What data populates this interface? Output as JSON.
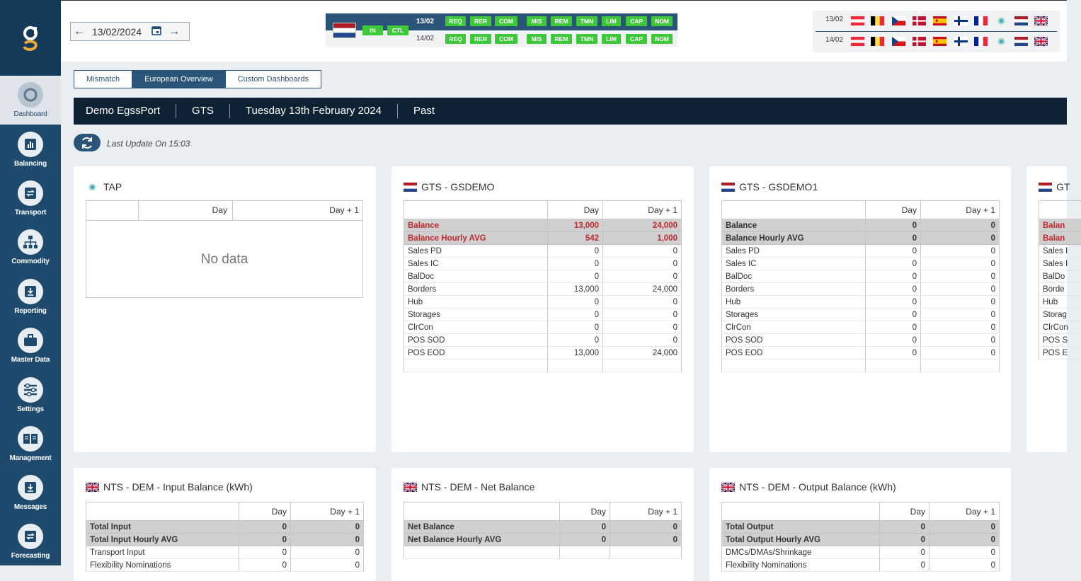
{
  "sidebar": {
    "items": [
      {
        "label": "Dashboard",
        "icon": "dashboard-icon",
        "active": true
      },
      {
        "label": "Balancing",
        "icon": "bar-chart-icon"
      },
      {
        "label": "Transport",
        "icon": "transfer-icon"
      },
      {
        "label": "Commodity",
        "icon": "hierarchy-icon"
      },
      {
        "label": "Reporting",
        "icon": "download-icon"
      },
      {
        "label": "Master Data",
        "icon": "briefcase-icon"
      },
      {
        "label": "Settings",
        "icon": "sliders-icon"
      },
      {
        "label": "Management",
        "icon": "book-icon"
      },
      {
        "label": "Messages",
        "icon": "inbox-download-icon"
      },
      {
        "label": "Forecasting",
        "icon": "transfer-icon"
      }
    ]
  },
  "header": {
    "date": "13/02/2024",
    "status": {
      "left_pills": [
        "IN",
        "CTL"
      ],
      "rows": [
        {
          "date": "13/02",
          "pills": [
            "REQ",
            "RER",
            "COM",
            "MIS",
            "REM",
            "TMN",
            "LIM",
            "CAP",
            "NOM"
          ]
        },
        {
          "date": "14/02",
          "pills": [
            "REQ",
            "RER",
            "COM",
            "MIS",
            "REM",
            "TMN",
            "LIM",
            "CAP",
            "NOM"
          ]
        }
      ]
    },
    "flag_rows": [
      "13/02",
      "14/02"
    ],
    "flags": [
      "austria-flag",
      "belgium-flag",
      "czech-flag",
      "denmark-flag",
      "spain-flag",
      "finland-flag",
      "france-flag",
      "tap-icon",
      "netherlands-flag",
      "uk-flag"
    ]
  },
  "tabs": [
    "Mismatch",
    "European Overview",
    "Custom Dashboards"
  ],
  "context": [
    "Demo EgssPort",
    "GTS",
    "Tuesday 13th February 2024",
    "Past"
  ],
  "last_update": "Last Update On 15:03",
  "cards": {
    "tap": {
      "title": "TAP",
      "cols": [
        "Day",
        "Day + 1"
      ],
      "no_data": "No data"
    },
    "gsdemo": {
      "title": "GTS - GSDEMO",
      "cols": [
        "Day",
        "Day + 1"
      ],
      "rows": [
        [
          "Balance",
          "13,000",
          "24,000"
        ],
        [
          "Balance Hourly AVG",
          "542",
          "1,000"
        ],
        [
          "Sales PD",
          "0",
          "0"
        ],
        [
          "Sales IC",
          "0",
          "0"
        ],
        [
          "BalDoc",
          "0",
          "0"
        ],
        [
          "Borders",
          "13,000",
          "24,000"
        ],
        [
          "Hub",
          "0",
          "0"
        ],
        [
          "Storages",
          "0",
          "0"
        ],
        [
          "ClrCon",
          "0",
          "0"
        ],
        [
          "POS SOD",
          "0",
          "0"
        ],
        [
          "POS EOD",
          "13,000",
          "24,000"
        ]
      ]
    },
    "gsdemo1": {
      "title": "GTS - GSDEMO1",
      "cols": [
        "Day",
        "Day + 1"
      ],
      "rows": [
        [
          "Balance",
          "0",
          "0"
        ],
        [
          "Balance Hourly AVG",
          "0",
          "0"
        ],
        [
          "Sales PD",
          "0",
          "0"
        ],
        [
          "Sales IC",
          "0",
          "0"
        ],
        [
          "BalDoc",
          "0",
          "0"
        ],
        [
          "Borders",
          "0",
          "0"
        ],
        [
          "Hub",
          "0",
          "0"
        ],
        [
          "Storages",
          "0",
          "0"
        ],
        [
          "ClrCon",
          "0",
          "0"
        ],
        [
          "POS SOD",
          "0",
          "0"
        ],
        [
          "POS EOD",
          "0",
          "0"
        ]
      ]
    },
    "partial": {
      "title": "GT",
      "rows": [
        "Balan",
        "Balan",
        "Sales I",
        "Sales I",
        "BalDo",
        "Borde",
        "Hub",
        "Storag",
        "ClrCon",
        "POS S",
        "POS E"
      ]
    },
    "nts_input": {
      "title": "NTS - DEM - Input Balance (kWh)",
      "cols": [
        "Day",
        "Day + 1"
      ],
      "rows": [
        [
          "Total Input",
          "0",
          "0"
        ],
        [
          "Total Input Hourly AVG",
          "0",
          "0"
        ],
        [
          "Transport Input",
          "0",
          "0"
        ],
        [
          "Flexibility Nominations",
          "0",
          "0"
        ]
      ]
    },
    "nts_net": {
      "title": "NTS - DEM - Net Balance",
      "cols": [
        "Day",
        "Day + 1"
      ],
      "rows": [
        [
          "Net Balance",
          "0",
          "0"
        ],
        [
          "Net Balance Hourly AVG",
          "0",
          "0"
        ]
      ]
    },
    "nts_output": {
      "title": "NTS - DEM - Output Balance (kWh)",
      "cols": [
        "Day",
        "Day + 1"
      ],
      "rows": [
        [
          "Total Output",
          "0",
          "0"
        ],
        [
          "Total Output Hourly AVG",
          "0",
          "0"
        ],
        [
          "DMCs/DMAs/Shrinkage",
          "0",
          "0"
        ],
        [
          "Flexibility Nominations",
          "0",
          "0"
        ]
      ]
    }
  },
  "colors": {
    "sidebar": "#1e4a6e",
    "accent": "#2a5578",
    "status_green": "#3ec93a",
    "negative": "#c0282d",
    "context_bar": "#0e2233"
  }
}
